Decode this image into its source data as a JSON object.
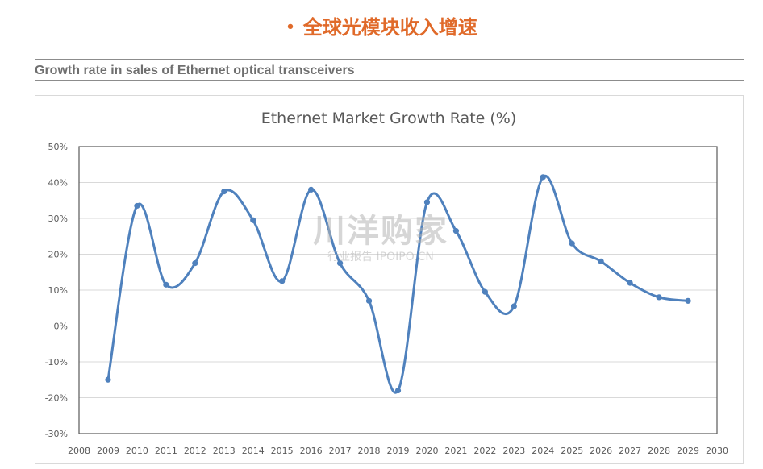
{
  "header": {
    "bullet": "•",
    "title": "全球光模块收入增速"
  },
  "section": {
    "heading": "Growth rate in sales of Ethernet optical transceivers"
  },
  "watermark": {
    "main": "川洋购家",
    "sub": "行业报告 IPOIPO.CN"
  },
  "colors": {
    "title": "#e06a2a",
    "series": "#4f81bd",
    "grid": "#d9d9d9",
    "heading": "#6f6f6f"
  },
  "chart_data": {
    "type": "line",
    "title": "Ethernet Market Growth Rate (%)",
    "xlabel": "",
    "ylabel": "",
    "xlim": [
      2008,
      2030
    ],
    "ylim": [
      -30,
      50
    ],
    "x_ticks": [
      2008,
      2009,
      2010,
      2011,
      2012,
      2013,
      2014,
      2015,
      2016,
      2017,
      2018,
      2019,
      2020,
      2021,
      2022,
      2023,
      2024,
      2025,
      2026,
      2027,
      2028,
      2029,
      2030
    ],
    "y_ticks": [
      -30,
      -20,
      -10,
      0,
      10,
      20,
      30,
      40,
      50
    ],
    "y_tick_labels": [
      "-30%",
      "-20%",
      "-10%",
      "0%",
      "10%",
      "20%",
      "30%",
      "40%",
      "50%"
    ],
    "grid": true,
    "smooth": true,
    "series": [
      {
        "x": [
          2009,
          2010,
          2011,
          2012,
          2013,
          2014,
          2015,
          2016,
          2017,
          2018,
          2019,
          2020,
          2021,
          2022,
          2023,
          2024,
          2025,
          2026,
          2027,
          2028,
          2029
        ],
        "values": [
          -15,
          33.5,
          11.5,
          17.5,
          37.5,
          29.5,
          12.5,
          38,
          17.5,
          7,
          -18,
          34.5,
          26.5,
          9.5,
          5.5,
          41.5,
          23,
          18,
          12,
          8,
          7
        ]
      }
    ]
  }
}
